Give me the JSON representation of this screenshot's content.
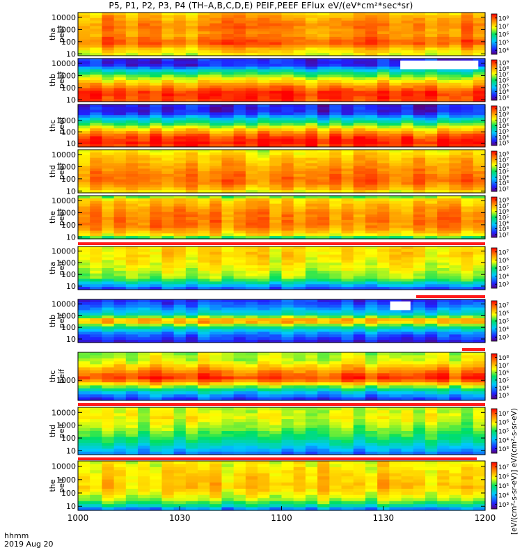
{
  "title": "P5, P1, P2, P3, P4 (TH–A,B,C,D,E) PEIF,PEEF EFlux eV/(eV*cm²*sec*sr)",
  "x_axis": {
    "label_line1": "hhmm",
    "label_line2": "2019 Aug 20"
  },
  "units_label": "[eV/(cm²-s-sr-eV)] eV/(cm²-s-sr-eV)",
  "colors": {
    "fill_bar": "#ff1a1a",
    "missing": "#ffffff"
  },
  "chart_data": {
    "type": "heatmap",
    "x_range": [
      "10:00",
      "12:00"
    ],
    "x_ticks": [
      "1000",
      "1030",
      "1100",
      "1130",
      "1200"
    ],
    "colormap": "rainbow (purple-blue-cyan-green-yellow-red)",
    "panels": [
      {
        "probe": "tha",
        "species": "peef",
        "label_line1": "tha",
        "label_line2": "peef",
        "y_scale": "log",
        "y_range_eV": [
          7,
          25000
        ],
        "y_ticks": [
          "10",
          "100",
          "1000",
          "10000"
        ],
        "cbar_ticks": [
          "10⁴",
          "10⁵",
          "10⁶",
          "10⁷",
          "10⁸"
        ],
        "missing_intervals": []
      },
      {
        "probe": "thb",
        "species": "peef",
        "label_line1": "thb",
        "label_line2": "peef",
        "y_scale": "log",
        "y_range_eV": [
          7,
          25000
        ],
        "y_ticks": [
          "10",
          "100",
          "1000",
          "10000"
        ],
        "cbar_ticks": [
          "10³",
          "10⁴",
          "10⁵",
          "10⁶",
          "10⁷",
          "10⁸",
          "10⁹"
        ],
        "missing_intervals": [
          [
            "11:35",
            "11:58"
          ]
        ]
      },
      {
        "probe": "thc",
        "species": "peef",
        "label_line1": "thc",
        "label_line2": "peef",
        "y_scale": "log",
        "y_range_eV": [
          5,
          25000
        ],
        "y_ticks": [
          "10",
          "100",
          "1000"
        ],
        "cbar_ticks": [
          "10³",
          "10⁴",
          "10⁵",
          "10⁶",
          "10⁷",
          "10⁸",
          "10⁹"
        ],
        "missing_intervals": []
      },
      {
        "probe": "thd",
        "species": "peef",
        "label_line1": "thd",
        "label_line2": "peef",
        "y_scale": "log",
        "y_range_eV": [
          7,
          25000
        ],
        "y_ticks": [
          "10",
          "100",
          "1000",
          "10000"
        ],
        "cbar_ticks": [
          "10²",
          "10³",
          "10⁴",
          "10⁵",
          "10⁶",
          "10⁷",
          "10⁸"
        ],
        "missing_intervals": []
      },
      {
        "probe": "the",
        "species": "peef",
        "label_line1": "the",
        "label_line2": "peef",
        "y_scale": "log",
        "y_range_eV": [
          7,
          25000
        ],
        "y_ticks": [
          "10",
          "100",
          "1000",
          "10000"
        ],
        "cbar_ticks": [
          "10²",
          "10³",
          "10⁴",
          "10⁵",
          "10⁶",
          "10⁷",
          "10⁸"
        ],
        "missing_intervals": []
      },
      {
        "probe": "tha",
        "species": "peif",
        "label_line1": "tha",
        "label_line2": "peif",
        "y_scale": "log",
        "y_range_eV": [
          5,
          25000
        ],
        "y_ticks": [
          "10",
          "100",
          "1000",
          "10000"
        ],
        "cbar_ticks": [
          "10³",
          "10⁴",
          "10⁵",
          "10⁶",
          "10⁷"
        ],
        "missing_intervals": []
      },
      {
        "probe": "thb",
        "species": "peif",
        "label_line1": "thb",
        "label_line2": "peif",
        "y_scale": "log",
        "y_range_eV": [
          5,
          25000
        ],
        "y_ticks": [
          "10",
          "100",
          "1000",
          "10000"
        ],
        "cbar_ticks": [
          "10³",
          "10⁴",
          "10⁵",
          "10⁶",
          "10⁷"
        ],
        "missing_intervals": [
          [
            "11:32",
            "11:38"
          ]
        ]
      },
      {
        "probe": "thc",
        "species": "peif",
        "label_line1": "thc",
        "label_line2": "peif",
        "y_scale": "log",
        "y_range_eV": [
          100,
          25000
        ],
        "y_ticks": [
          "1000"
        ],
        "cbar_ticks": [
          "10³",
          "10⁴",
          "10⁵",
          "10⁶",
          "10⁷",
          "10⁸"
        ],
        "missing_intervals": []
      },
      {
        "probe": "thd",
        "species": "peif",
        "label_line1": "thd",
        "label_line2": "peif",
        "y_scale": "log",
        "y_range_eV": [
          5,
          25000
        ],
        "y_ticks": [
          "10",
          "100",
          "1000",
          "10000"
        ],
        "cbar_ticks": [
          "10³",
          "10⁴",
          "10⁵",
          "10⁶",
          "10⁷"
        ],
        "missing_intervals": []
      },
      {
        "probe": "the",
        "species": "peif",
        "label_line1": "the",
        "label_line2": "peif",
        "y_scale": "log",
        "y_range_eV": [
          5,
          25000
        ],
        "y_ticks": [
          "10",
          "100",
          "1000",
          "10000"
        ],
        "cbar_ticks": [
          "10³",
          "10⁴",
          "10⁵",
          "10⁶",
          "10⁷"
        ],
        "missing_intervals": []
      }
    ]
  }
}
